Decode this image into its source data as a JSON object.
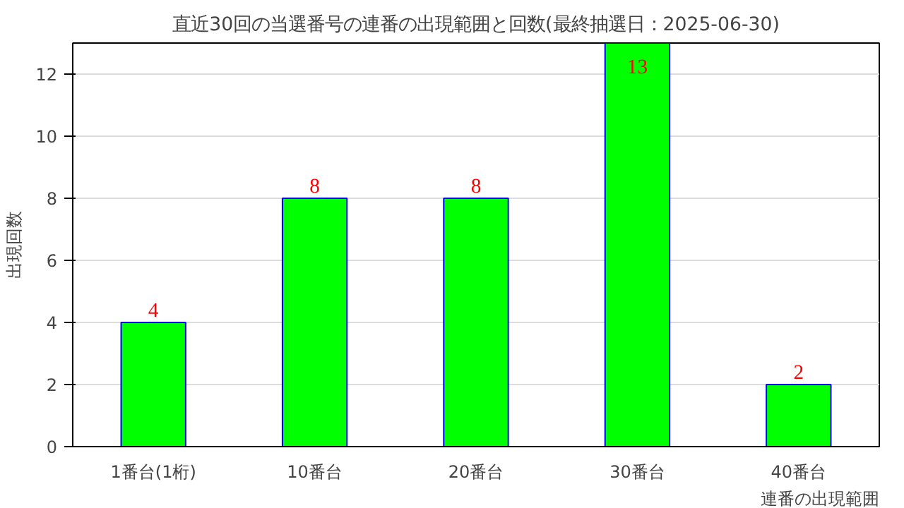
{
  "chart_data": {
    "type": "bar",
    "title": "直近30回の当選番号の連番の出現範囲と回数(最終抽選日：2025-06-30)",
    "xlabel": "連番の出現範囲",
    "ylabel": "出現回数",
    "categories": [
      "1番台(1桁)",
      "10番台",
      "20番台",
      "30番台",
      "40番台"
    ],
    "values": [
      4,
      8,
      8,
      13,
      2
    ],
    "color": "#00ff00",
    "ylim": [
      0,
      13
    ],
    "yticks": [
      0,
      2,
      4,
      6,
      8,
      10,
      12
    ],
    "grid": "y",
    "data_labels": true
  }
}
